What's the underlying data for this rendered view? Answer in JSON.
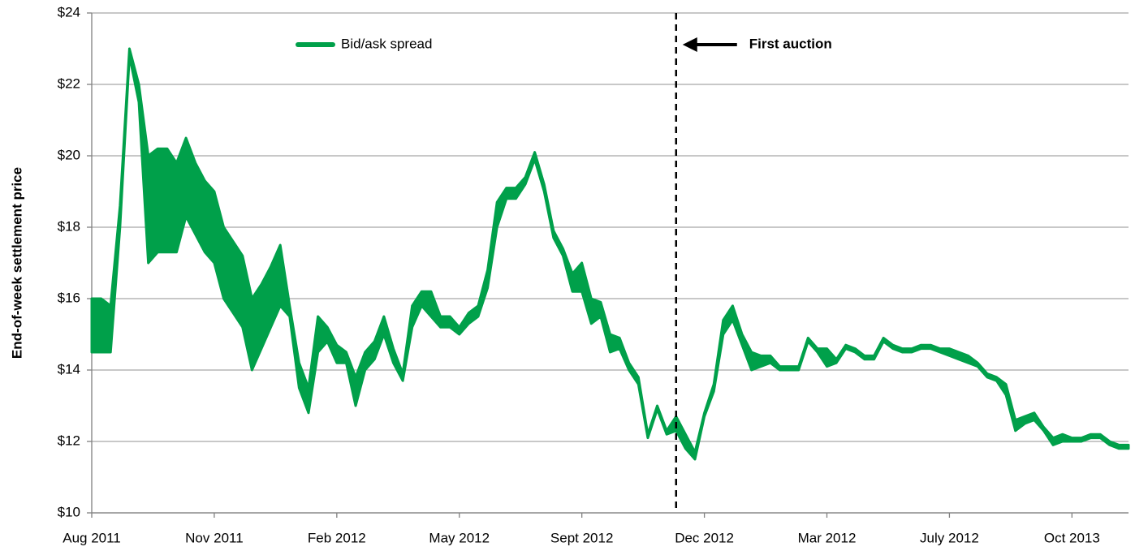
{
  "chart_data": {
    "type": "range-area",
    "y_label": "End-of-week settlement price",
    "x": [
      0,
      1,
      2,
      3,
      4,
      5,
      6,
      7,
      8,
      9,
      10,
      11,
      12,
      13,
      14,
      15,
      16,
      17,
      18,
      19,
      20,
      21,
      22,
      23,
      24,
      25,
      26,
      27,
      28,
      29,
      30,
      31,
      32,
      33,
      34,
      35,
      36,
      37,
      38,
      39,
      40,
      41,
      42,
      43,
      44,
      45,
      46,
      47,
      48,
      49,
      50,
      51,
      52,
      53,
      54,
      55,
      56,
      57,
      58,
      59,
      60,
      61,
      62,
      63,
      64,
      65,
      66,
      67,
      68,
      69,
      70,
      71,
      72,
      73,
      74,
      75,
      76,
      77,
      78,
      79,
      80,
      81,
      82,
      83,
      84,
      85,
      86,
      87,
      88,
      89,
      90,
      91,
      92,
      93,
      94,
      95,
      96,
      97,
      98,
      99,
      100,
      101,
      102,
      103,
      104,
      105,
      106,
      107,
      108,
      109,
      110
    ],
    "series": [
      {
        "name": "Bid/ask spread",
        "color": "#00a04a",
        "low": [
          14.5,
          14.5,
          14.5,
          18,
          22.8,
          21.5,
          17,
          17.3,
          17.3,
          17.3,
          18.3,
          17.8,
          17.3,
          17,
          16,
          15.6,
          15.2,
          14,
          14.6,
          15.2,
          15.8,
          15.5,
          13.5,
          12.8,
          14.5,
          14.8,
          14.2,
          14.2,
          13,
          14,
          14.3,
          15,
          14.2,
          13.7,
          15.2,
          15.8,
          15.5,
          15.2,
          15.2,
          15,
          15.3,
          15.5,
          16.3,
          18,
          18.8,
          18.8,
          19.2,
          19.9,
          19,
          17.7,
          17.2,
          16.2,
          16.2,
          15.3,
          15.5,
          14.5,
          14.6,
          14,
          13.6,
          12.1,
          12.9,
          12.2,
          12.3,
          11.8,
          11.5,
          12.7,
          13.4,
          15,
          15.4,
          14.7,
          14,
          14.1,
          14.2,
          14,
          14,
          14,
          14.8,
          14.5,
          14.1,
          14.2,
          14.6,
          14.5,
          14.3,
          14.3,
          14.8,
          14.6,
          14.5,
          14.5,
          14.6,
          14.6,
          14.5,
          14.4,
          14.3,
          14.2,
          14.1,
          13.8,
          13.7,
          13.3,
          12.3,
          12.5,
          12.6,
          12.3,
          11.9,
          12,
          12,
          12,
          12.1,
          12.1,
          11.9,
          11.8,
          11.8
        ],
        "high": [
          16,
          16,
          15.8,
          18.6,
          23,
          22,
          20,
          20.2,
          20.2,
          19.8,
          20.5,
          19.8,
          19.3,
          19,
          18,
          17.6,
          17.2,
          16,
          16.4,
          16.9,
          17.5,
          15.8,
          14.2,
          13.5,
          15.5,
          15.2,
          14.7,
          14.5,
          13.8,
          14.5,
          14.8,
          15.5,
          14.6,
          13.9,
          15.8,
          16.2,
          16.2,
          15.5,
          15.5,
          15.2,
          15.6,
          15.8,
          16.8,
          18.7,
          19.1,
          19.1,
          19.4,
          20.1,
          19.2,
          17.9,
          17.4,
          16.7,
          17,
          16,
          15.9,
          15,
          14.9,
          14.2,
          13.8,
          12.2,
          13,
          12.3,
          12.7,
          12.2,
          11.7,
          12.8,
          13.6,
          15.4,
          15.8,
          15,
          14.5,
          14.4,
          14.4,
          14.1,
          14.1,
          14.1,
          14.9,
          14.6,
          14.6,
          14.3,
          14.7,
          14.6,
          14.4,
          14.4,
          14.9,
          14.7,
          14.6,
          14.6,
          14.7,
          14.7,
          14.6,
          14.6,
          14.5,
          14.4,
          14.2,
          13.9,
          13.8,
          13.6,
          12.6,
          12.7,
          12.8,
          12.4,
          12.1,
          12.2,
          12.1,
          12.1,
          12.2,
          12.2,
          12,
          11.9,
          11.9
        ]
      }
    ],
    "xlim": [
      0,
      110
    ],
    "xticks": [
      {
        "value": 0,
        "label": "Aug 2011"
      },
      {
        "value": 13,
        "label": "Nov 2011"
      },
      {
        "value": 26,
        "label": "Feb 2012"
      },
      {
        "value": 39,
        "label": "May 2012"
      },
      {
        "value": 52,
        "label": "Sept 2012"
      },
      {
        "value": 65,
        "label": "Dec 2012"
      },
      {
        "value": 78,
        "label": "Mar 2012"
      },
      {
        "value": 91,
        "label": "July 2012"
      },
      {
        "value": 104,
        "label": "Oct 2013"
      }
    ],
    "ylim": [
      10,
      24
    ],
    "yticks": [
      {
        "value": 10,
        "label": "$10"
      },
      {
        "value": 12,
        "label": "$12"
      },
      {
        "value": 14,
        "label": "$14"
      },
      {
        "value": 16,
        "label": "$16"
      },
      {
        "value": 18,
        "label": "$18"
      },
      {
        "value": 20,
        "label": "$20"
      },
      {
        "value": 22,
        "label": "$22"
      },
      {
        "value": 24,
        "label": "$24"
      }
    ],
    "grid": true,
    "vline": {
      "x": 62,
      "label": "First auction"
    }
  }
}
